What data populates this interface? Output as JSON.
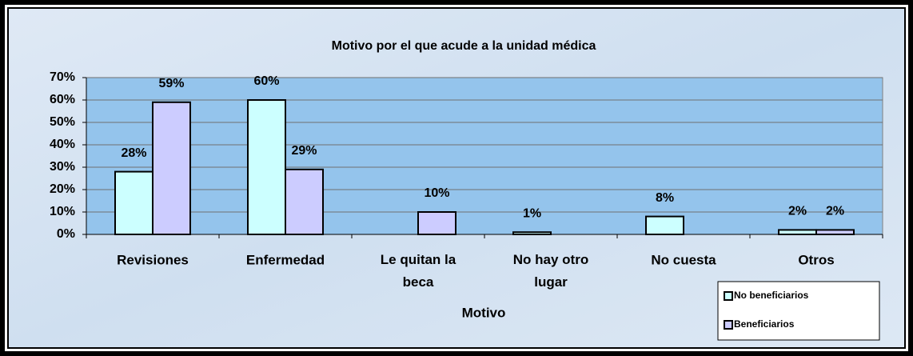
{
  "chart_data": {
    "type": "bar",
    "title": "Motivo por el que acude a la unidad médica",
    "x_label": "Motivo",
    "categories": [
      "Revisiones",
      "Enfermedad",
      "Le quitan la beca",
      "No hay otro lugar",
      "No cuesta",
      "Otros"
    ],
    "series": [
      {
        "name": "No beneficiarios",
        "color": "#ccffff",
        "values": [
          28,
          60,
          null,
          1,
          8,
          2
        ],
        "value_labels": [
          "28%",
          "60%",
          null,
          "1%",
          "8%",
          "2%"
        ]
      },
      {
        "name": "Beneficiarios",
        "color": "#ccccff",
        "values": [
          59,
          29,
          10,
          null,
          null,
          2
        ],
        "value_labels": [
          "59%",
          "29%",
          "10%",
          null,
          null,
          "2%"
        ]
      }
    ],
    "ylim": [
      0,
      70
    ],
    "yticks": [
      {
        "value": 0,
        "label": "0%"
      },
      {
        "value": 10,
        "label": "10%"
      },
      {
        "value": 20,
        "label": "20%"
      },
      {
        "value": 30,
        "label": "30%"
      },
      {
        "value": 40,
        "label": "40%"
      },
      {
        "value": 50,
        "label": "50%"
      },
      {
        "value": 60,
        "label": "60%"
      },
      {
        "value": 70,
        "label": "70%"
      }
    ],
    "grid": true,
    "plot_color": "#94c4ec",
    "legend": "lower right"
  }
}
